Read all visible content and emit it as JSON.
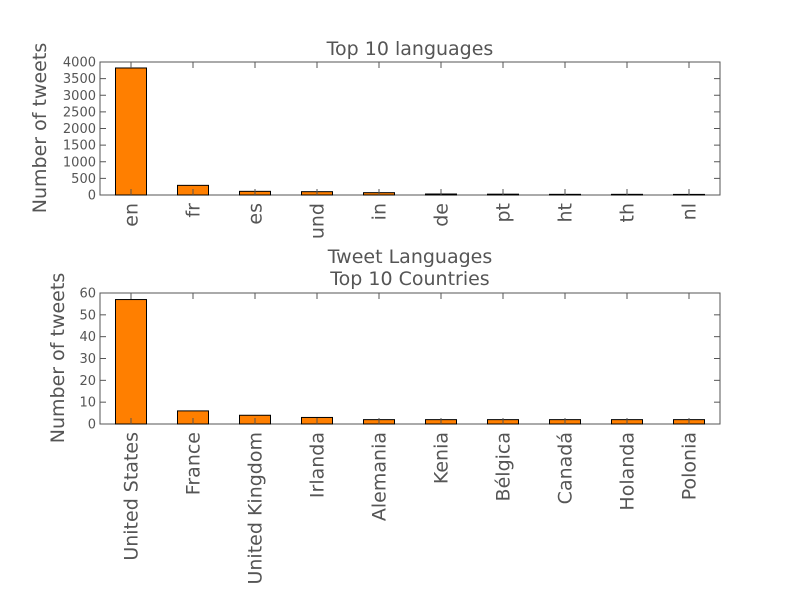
{
  "chart_data": [
    {
      "type": "bar",
      "title": "Top 10 languages",
      "xlabel": "Tweet Languages",
      "ylabel": "Number of tweets",
      "categories": [
        "en",
        "fr",
        "es",
        "und",
        "in",
        "de",
        "pt",
        "ht",
        "th",
        "nl"
      ],
      "values": [
        3820,
        290,
        110,
        100,
        70,
        30,
        25,
        20,
        20,
        18
      ],
      "ylim": [
        0,
        4000
      ],
      "yticks": [
        0,
        500,
        1000,
        1500,
        2000,
        2500,
        3000,
        3500,
        4000
      ],
      "bar_color": "#ff7f00",
      "grid": false
    },
    {
      "type": "bar",
      "title": "Top 10 Countries",
      "xlabel": "",
      "ylabel": "Number of tweets",
      "categories": [
        "United States",
        "France",
        "United Kingdom",
        "Irlanda",
        "Alemania",
        "Kenia",
        "Bélgica",
        "Canadá",
        "Holanda",
        "Polonia"
      ],
      "values": [
        57,
        6,
        4,
        3,
        2,
        2,
        2,
        2,
        2,
        2
      ],
      "ylim": [
        0,
        60
      ],
      "yticks": [
        0,
        10,
        20,
        30,
        40,
        50,
        60
      ],
      "bar_color": "#ff7f00",
      "grid": false
    }
  ]
}
